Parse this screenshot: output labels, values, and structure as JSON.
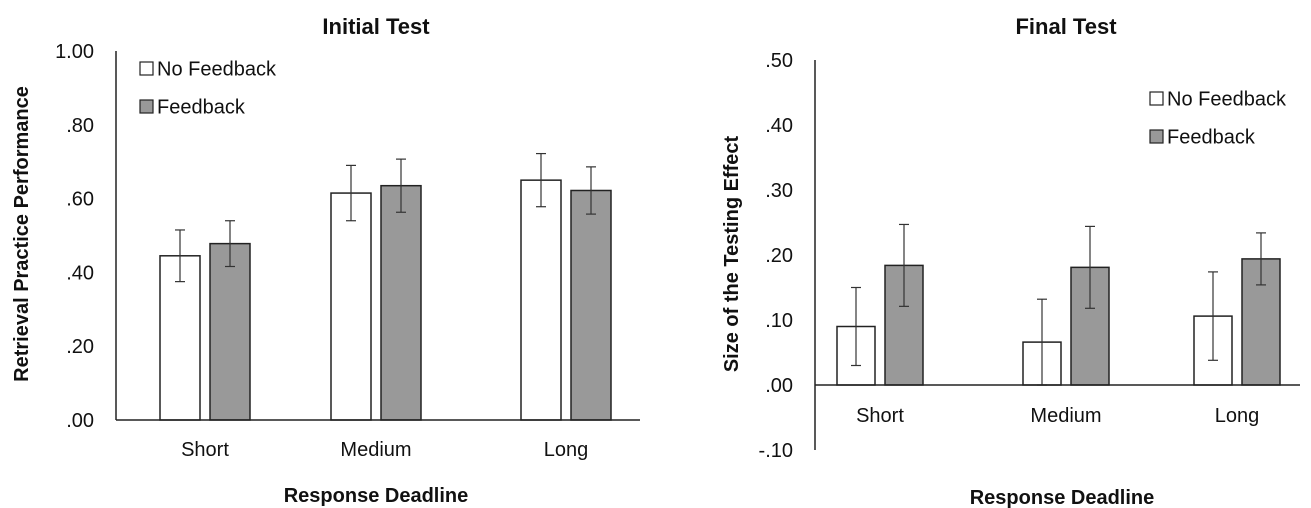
{
  "chart_data": [
    {
      "type": "bar",
      "title": "Initial Test",
      "xlabel": "Response Deadline",
      "ylabel": "Retrieval Practice Performance",
      "categories": [
        "Short",
        "Medium",
        "Long"
      ],
      "ylim": [
        0,
        1.0
      ],
      "yticks": [
        ".00",
        ".20",
        ".40",
        ".60",
        ".80",
        "1.00"
      ],
      "legend_position": "top-left",
      "series": [
        {
          "name": "No Feedback",
          "color": "#ffffff",
          "values": [
            0.445,
            0.615,
            0.65
          ],
          "errors": [
            0.07,
            0.075,
            0.072
          ]
        },
        {
          "name": "Feedback",
          "color": "#999999",
          "values": [
            0.478,
            0.635,
            0.622
          ],
          "errors": [
            0.062,
            0.072,
            0.064
          ]
        }
      ]
    },
    {
      "type": "bar",
      "title": "Final Test",
      "xlabel": "Response Deadline",
      "ylabel": "Size of the Testing Effect",
      "categories": [
        "Short",
        "Medium",
        "Long"
      ],
      "ylim": [
        -0.1,
        0.5
      ],
      "yticks": [
        "-.10",
        ".00",
        ".10",
        ".20",
        ".30",
        ".40",
        ".50"
      ],
      "legend_position": "top-right",
      "series": [
        {
          "name": "No Feedback",
          "color": "#ffffff",
          "values": [
            0.09,
            0.066,
            0.106
          ],
          "errors": [
            0.06,
            0.066,
            0.068
          ]
        },
        {
          "name": "Feedback",
          "color": "#999999",
          "values": [
            0.184,
            0.181,
            0.194
          ],
          "errors": [
            0.063,
            0.063,
            0.04
          ]
        }
      ]
    }
  ]
}
